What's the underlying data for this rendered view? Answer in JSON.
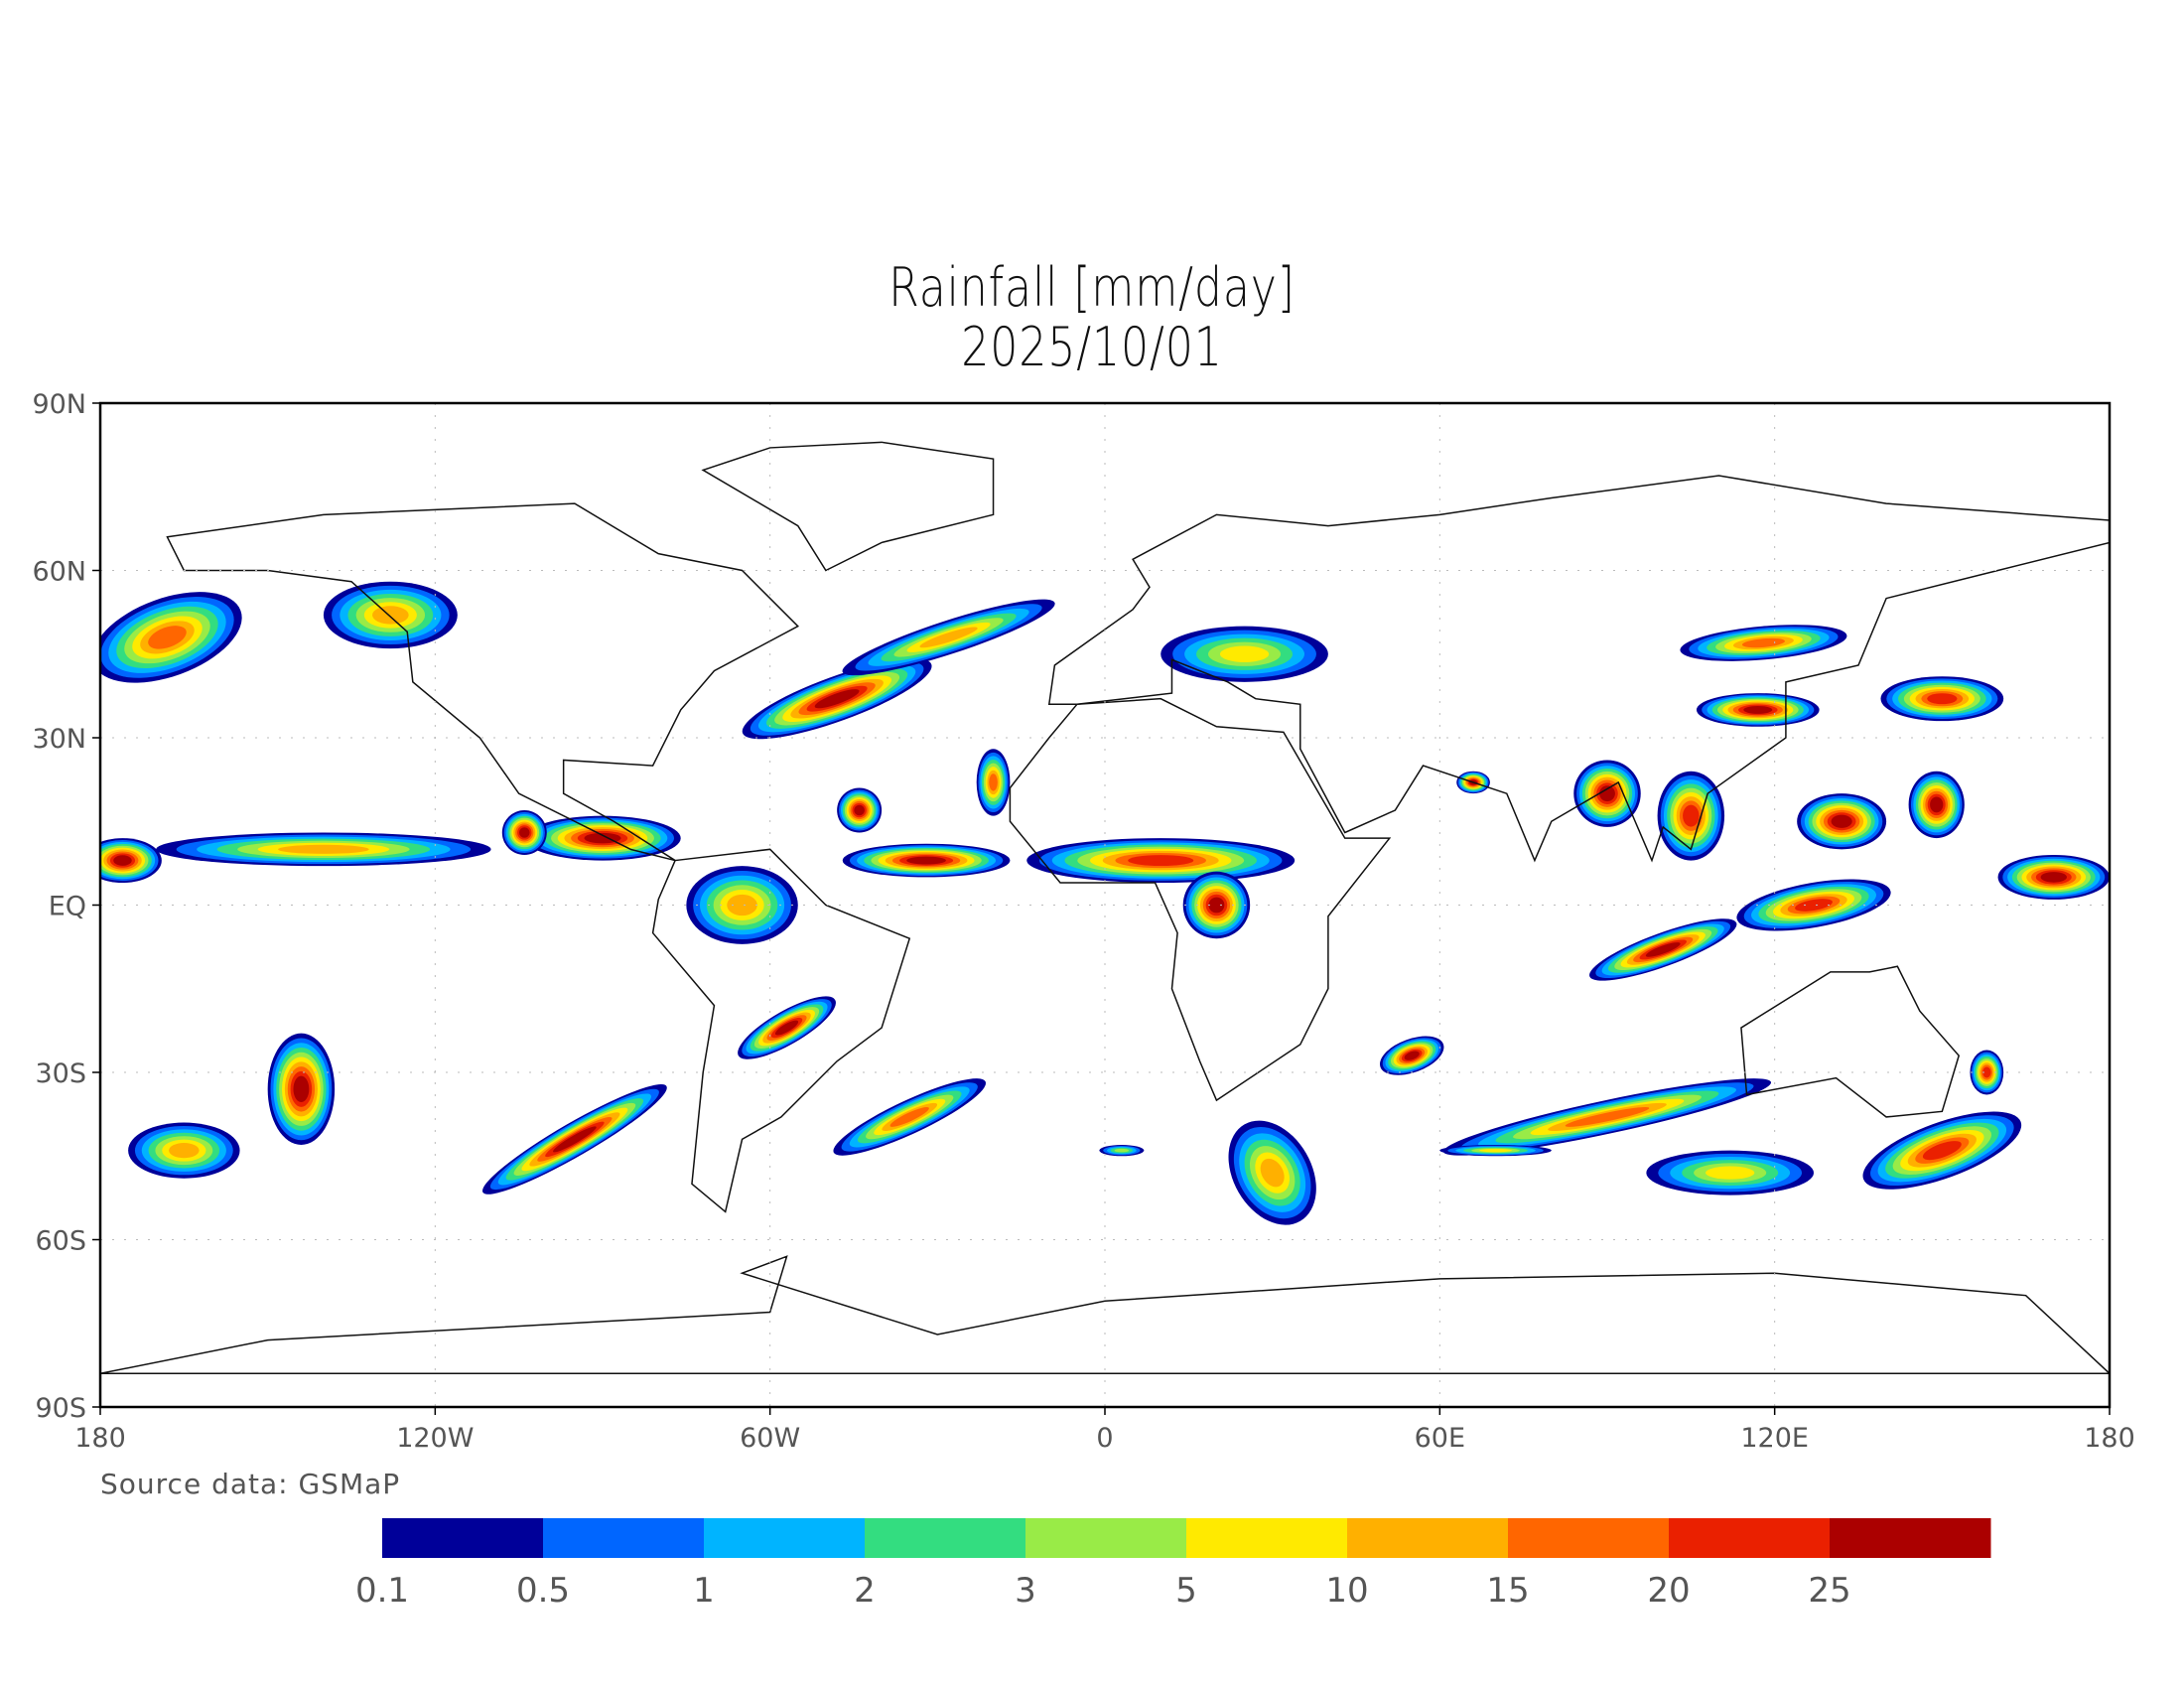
{
  "chart_data": {
    "type": "heatmap",
    "title": "Rainfall [mm/day]",
    "subtitle": "2025/10/01",
    "source": "Source data: GSMaP",
    "xlim": [
      -180,
      180
    ],
    "ylim": [
      -90,
      90
    ],
    "x_ticks": [
      {
        "value": -180,
        "label": "180"
      },
      {
        "value": -120,
        "label": "120W"
      },
      {
        "value": -60,
        "label": "60W"
      },
      {
        "value": 0,
        "label": "0"
      },
      {
        "value": 60,
        "label": "60E"
      },
      {
        "value": 120,
        "label": "120E"
      },
      {
        "value": 180,
        "label": "180"
      }
    ],
    "y_ticks": [
      {
        "value": 90,
        "label": "90N"
      },
      {
        "value": 60,
        "label": "60N"
      },
      {
        "value": 30,
        "label": "30N"
      },
      {
        "value": 0,
        "label": "EQ"
      },
      {
        "value": -30,
        "label": "30S"
      },
      {
        "value": -60,
        "label": "60S"
      },
      {
        "value": -90,
        "label": "90S"
      }
    ],
    "grid": "dotted",
    "data_lat_range": [
      -60,
      60
    ],
    "colorbar": {
      "levels": [
        "0.1",
        "0.5",
        "1",
        "2",
        "3",
        "5",
        "10",
        "15",
        "20",
        "25"
      ],
      "colors": [
        "#000099",
        "#0066ff",
        "#00b4ff",
        "#33dd80",
        "#99eb47",
        "#ffea00",
        "#ffb000",
        "#ff6600",
        "#ea2000",
        "#ab0000"
      ]
    },
    "rain_features": [
      {
        "lon": -48,
        "lat": 37,
        "rx": 18,
        "ry": 4,
        "rot": -20,
        "max_level": 9
      },
      {
        "lon": -28,
        "lat": 48,
        "rx": 20,
        "ry": 3,
        "rot": -18,
        "max_level": 6
      },
      {
        "lon": -168,
        "lat": 48,
        "rx": 14,
        "ry": 7,
        "rot": -20,
        "max_level": 7
      },
      {
        "lon": -128,
        "lat": 52,
        "rx": 12,
        "ry": 6,
        "rot": 0,
        "max_level": 6
      },
      {
        "lon": -140,
        "lat": 10,
        "rx": 30,
        "ry": 3,
        "rot": 0,
        "max_level": 6
      },
      {
        "lon": -90,
        "lat": 12,
        "rx": 14,
        "ry": 4,
        "rot": 0,
        "max_level": 9
      },
      {
        "lon": -104,
        "lat": 13,
        "rx": 4,
        "ry": 4,
        "rot": 0,
        "max_level": 9
      },
      {
        "lon": -176,
        "lat": 8,
        "rx": 7,
        "ry": 4,
        "rot": 0,
        "max_level": 9
      },
      {
        "lon": -32,
        "lat": 8,
        "rx": 15,
        "ry": 3,
        "rot": 0,
        "max_level": 9
      },
      {
        "lon": -44,
        "lat": 17,
        "rx": 4,
        "ry": 4,
        "rot": 0,
        "max_level": 9
      },
      {
        "lon": -20,
        "lat": 22,
        "rx": 3,
        "ry": 6,
        "rot": 0,
        "max_level": 7
      },
      {
        "lon": 10,
        "lat": 8,
        "rx": 24,
        "ry": 4,
        "rot": 0,
        "max_level": 8
      },
      {
        "lon": 20,
        "lat": 0,
        "rx": 6,
        "ry": 6,
        "rot": 0,
        "max_level": 9
      },
      {
        "lon": -65,
        "lat": 0,
        "rx": 10,
        "ry": 7,
        "rot": 0,
        "max_level": 6
      },
      {
        "lon": -57,
        "lat": -22,
        "rx": 10,
        "ry": 3,
        "rot": -30,
        "max_level": 9
      },
      {
        "lon": -35,
        "lat": -38,
        "rx": 15,
        "ry": 3,
        "rot": -25,
        "max_level": 7
      },
      {
        "lon": -95,
        "lat": -42,
        "rx": 19,
        "ry": 3,
        "rot": -30,
        "max_level": 9
      },
      {
        "lon": -144,
        "lat": -33,
        "rx": 6,
        "ry": 10,
        "rot": 0,
        "max_level": 9
      },
      {
        "lon": -165,
        "lat": -44,
        "rx": 10,
        "ry": 5,
        "rot": 0,
        "max_level": 6
      },
      {
        "lon": 55,
        "lat": -27,
        "rx": 6,
        "ry": 3,
        "rot": -20,
        "max_level": 9
      },
      {
        "lon": 90,
        "lat": -38,
        "rx": 30,
        "ry": 3,
        "rot": -12,
        "max_level": 7
      },
      {
        "lon": 112,
        "lat": -48,
        "rx": 15,
        "ry": 4,
        "rot": 0,
        "max_level": 5
      },
      {
        "lon": 30,
        "lat": -48,
        "rx": 10,
        "ry": 7,
        "rot": 60,
        "max_level": 6
      },
      {
        "lon": 90,
        "lat": 20,
        "rx": 6,
        "ry": 6,
        "rot": 0,
        "max_level": 9
      },
      {
        "lon": 105,
        "lat": 16,
        "rx": 6,
        "ry": 8,
        "rot": 0,
        "max_level": 8
      },
      {
        "lon": 132,
        "lat": 15,
        "rx": 8,
        "ry": 5,
        "rot": 0,
        "max_level": 9
      },
      {
        "lon": 149,
        "lat": 18,
        "rx": 5,
        "ry": 6,
        "rot": 0,
        "max_level": 9
      },
      {
        "lon": 127,
        "lat": 0,
        "rx": 14,
        "ry": 4,
        "rot": -10,
        "max_level": 8
      },
      {
        "lon": 100,
        "lat": -8,
        "rx": 14,
        "ry": 3,
        "rot": -20,
        "max_level": 9
      },
      {
        "lon": 170,
        "lat": 5,
        "rx": 10,
        "ry": 4,
        "rot": 0,
        "max_level": 9
      },
      {
        "lon": 117,
        "lat": 35,
        "rx": 11,
        "ry": 3,
        "rot": 0,
        "max_level": 9
      },
      {
        "lon": 150,
        "lat": 37,
        "rx": 11,
        "ry": 4,
        "rot": 0,
        "max_level": 8
      },
      {
        "lon": 118,
        "lat": 47,
        "rx": 15,
        "ry": 3,
        "rot": -5,
        "max_level": 7
      },
      {
        "lon": 150,
        "lat": -44,
        "rx": 15,
        "ry": 5,
        "rot": -20,
        "max_level": 8
      },
      {
        "lon": 158,
        "lat": -30,
        "rx": 3,
        "ry": 4,
        "rot": 0,
        "max_level": 8
      },
      {
        "lon": 25,
        "lat": 45,
        "rx": 15,
        "ry": 5,
        "rot": 0,
        "max_level": 5
      },
      {
        "lon": 66,
        "lat": 22,
        "rx": 3,
        "ry": 2,
        "rot": 0,
        "max_level": 9
      },
      {
        "lon": 70,
        "lat": -44,
        "rx": 10,
        "ry": 1,
        "rot": 0,
        "max_level": 5
      },
      {
        "lon": 3,
        "lat": -44,
        "rx": 4,
        "ry": 1,
        "rot": 0,
        "max_level": 4
      }
    ]
  }
}
